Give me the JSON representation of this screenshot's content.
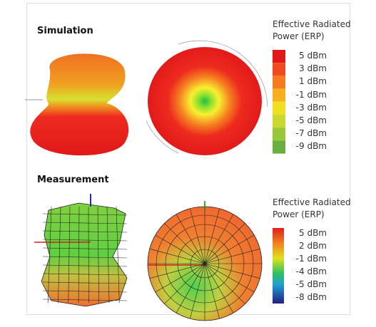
{
  "simulation": {
    "title": "Simulation",
    "legend_title": [
      "Effective Radiated",
      "Power (ERP)"
    ],
    "legend_labels": [
      "5 dBm",
      "3 dBm",
      "1 dBm",
      "-1 dBm",
      "-3 dBm",
      "-5 dBm",
      "-7 dBm",
      "-9 dBm"
    ]
  },
  "measurement": {
    "title": "Measurement",
    "legend_title": [
      "Effective Radiated",
      "Power (ERP)"
    ],
    "legend_labels": [
      "5 dBm",
      "2 dBm",
      "-1 dBm",
      "-4 dBm",
      "-5 dBm",
      "-8 dBm"
    ]
  }
}
